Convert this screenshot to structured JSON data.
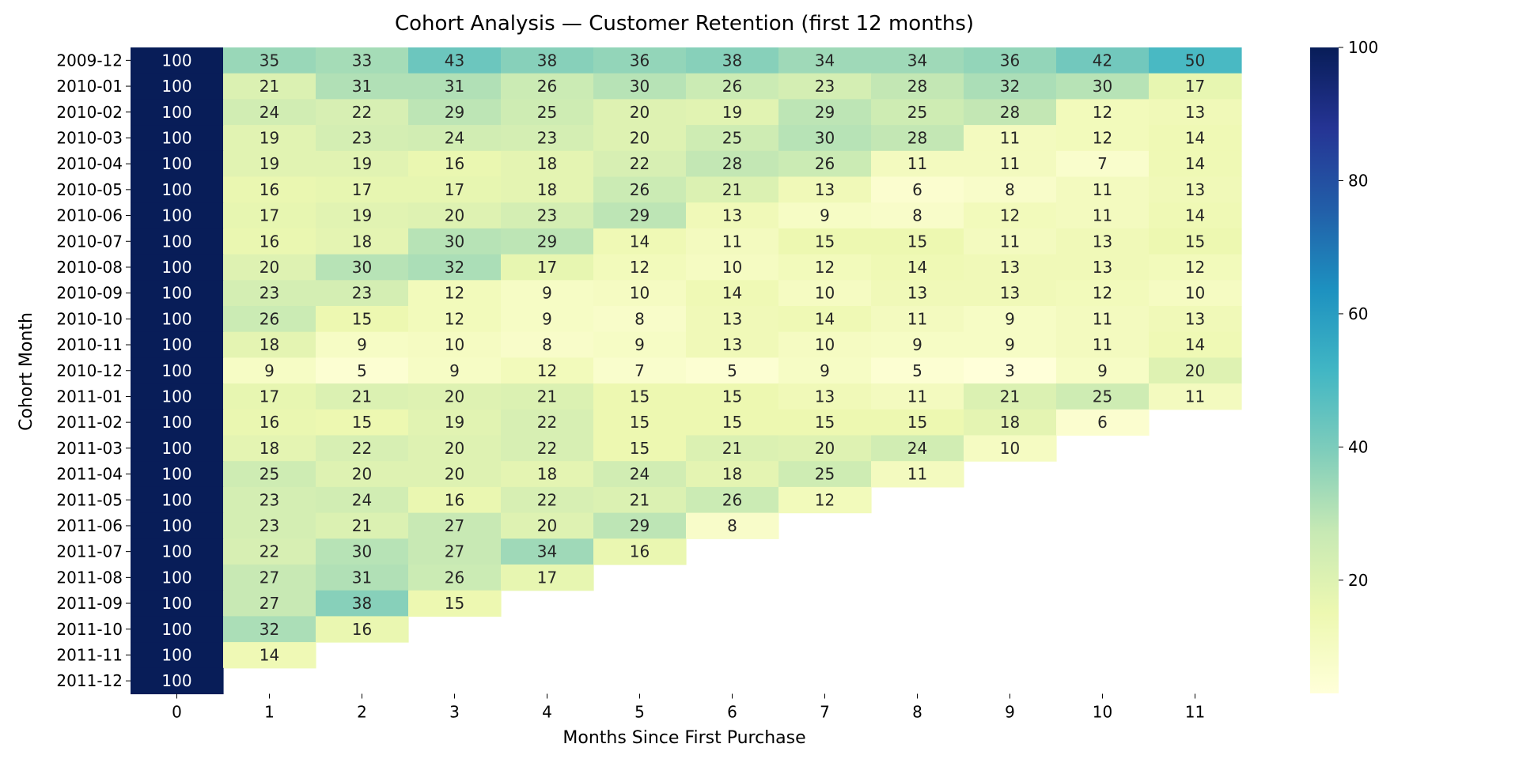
{
  "chart_data": {
    "type": "heatmap",
    "title": "Cohort Analysis — Customer Retention (first 12 months)",
    "xlabel": "Months Since First Purchase",
    "ylabel": "Cohort Month",
    "x": [
      "0",
      "1",
      "2",
      "3",
      "4",
      "5",
      "6",
      "7",
      "8",
      "9",
      "10",
      "11"
    ],
    "y": [
      "2009-12",
      "2010-01",
      "2010-02",
      "2010-03",
      "2010-04",
      "2010-05",
      "2010-06",
      "2010-07",
      "2010-08",
      "2010-09",
      "2010-10",
      "2010-11",
      "2010-12",
      "2011-01",
      "2011-02",
      "2011-03",
      "2011-04",
      "2011-05",
      "2011-06",
      "2011-07",
      "2011-08",
      "2011-09",
      "2011-10",
      "2011-11",
      "2011-12"
    ],
    "values": [
      [
        100,
        35,
        33,
        43,
        38,
        36,
        38,
        34,
        34,
        36,
        42,
        50
      ],
      [
        100,
        21,
        31,
        31,
        26,
        30,
        26,
        23,
        28,
        32,
        30,
        17
      ],
      [
        100,
        24,
        22,
        29,
        25,
        20,
        19,
        29,
        25,
        28,
        12,
        13
      ],
      [
        100,
        19,
        23,
        24,
        23,
        20,
        25,
        30,
        28,
        11,
        12,
        14
      ],
      [
        100,
        19,
        19,
        16,
        18,
        22,
        28,
        26,
        11,
        11,
        7,
        14
      ],
      [
        100,
        16,
        17,
        17,
        18,
        26,
        21,
        13,
        6,
        8,
        11,
        13
      ],
      [
        100,
        17,
        19,
        20,
        23,
        29,
        13,
        9,
        8,
        12,
        11,
        14
      ],
      [
        100,
        16,
        18,
        30,
        29,
        14,
        11,
        15,
        15,
        11,
        13,
        15
      ],
      [
        100,
        20,
        30,
        32,
        17,
        12,
        10,
        12,
        14,
        13,
        13,
        12
      ],
      [
        100,
        23,
        23,
        12,
        9,
        10,
        14,
        10,
        13,
        13,
        12,
        10
      ],
      [
        100,
        26,
        15,
        12,
        9,
        8,
        13,
        14,
        11,
        9,
        11,
        13
      ],
      [
        100,
        18,
        9,
        10,
        8,
        9,
        13,
        10,
        9,
        9,
        11,
        14
      ],
      [
        100,
        9,
        5,
        9,
        12,
        7,
        5,
        9,
        5,
        3,
        9,
        20
      ],
      [
        100,
        17,
        21,
        20,
        21,
        15,
        15,
        13,
        11,
        21,
        25,
        11
      ],
      [
        100,
        16,
        15,
        19,
        22,
        15,
        15,
        15,
        15,
        18,
        6
      ],
      [
        100,
        18,
        22,
        20,
        22,
        15,
        21,
        20,
        24,
        10
      ],
      [
        100,
        25,
        20,
        20,
        18,
        24,
        18,
        25,
        11
      ],
      [
        100,
        23,
        24,
        16,
        22,
        21,
        26,
        12
      ],
      [
        100,
        23,
        21,
        27,
        20,
        29,
        8
      ],
      [
        100,
        22,
        30,
        27,
        34,
        16
      ],
      [
        100,
        27,
        31,
        26,
        17
      ],
      [
        100,
        27,
        38,
        15
      ],
      [
        100,
        32,
        16
      ],
      [
        100,
        14
      ],
      [
        100
      ]
    ],
    "vmin": 3,
    "vmax": 100,
    "colormap": "YlGnBu",
    "colorbar_ticks": [
      "20",
      "40",
      "60",
      "80",
      "100"
    ],
    "colorbar_tick_values": [
      20,
      40,
      60,
      80,
      100
    ],
    "annotated": true,
    "grid": false
  }
}
